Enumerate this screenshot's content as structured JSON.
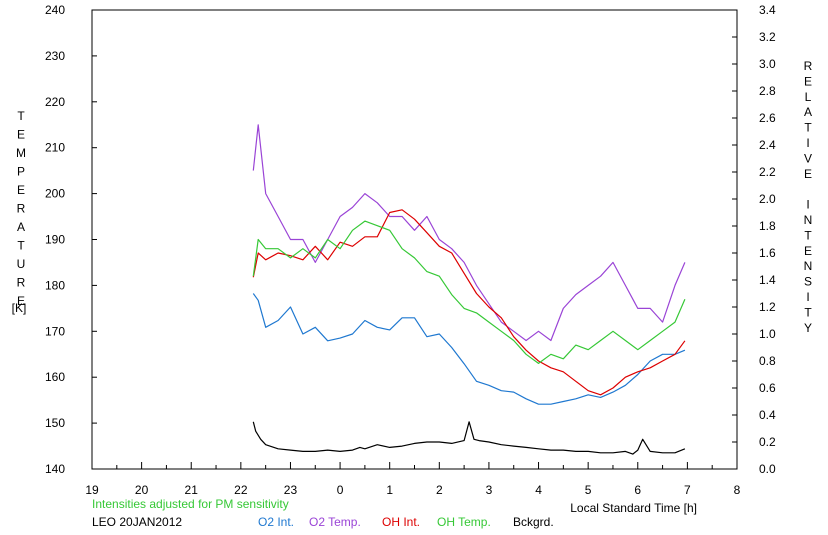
{
  "chart_data": {
    "type": "line",
    "left_axis": {
      "letters": [
        "T",
        "E",
        "M",
        "P",
        "E",
        "R",
        "A",
        "T",
        "U",
        "R",
        "E"
      ],
      "unit": "[K]",
      "ylim": [
        140,
        240
      ],
      "ticks": [
        "140",
        "150",
        "160",
        "170",
        "180",
        "190",
        "200",
        "210",
        "220",
        "230",
        "240"
      ]
    },
    "right_axis": {
      "letters": [
        "R",
        "E",
        "L",
        "A",
        "T",
        "I",
        "V",
        "E",
        "",
        "I",
        "N",
        "T",
        "E",
        "N",
        "S",
        "I",
        "T",
        "Y"
      ],
      "ylim": [
        0.0,
        3.4
      ],
      "ticks": [
        "0.0",
        "0.2",
        "0.4",
        "0.6",
        "0.8",
        "1.0",
        "1.2",
        "1.4",
        "1.6",
        "1.8",
        "2.0",
        "2.2",
        "2.4",
        "2.6",
        "2.8",
        "3.0",
        "3.2",
        "3.4"
      ]
    },
    "x_axis": {
      "label": "Local Standard Time [h]",
      "ticks": [
        "19",
        "20",
        "21",
        "22",
        "23",
        "0",
        "1",
        "2",
        "3",
        "4",
        "5",
        "6",
        "7",
        "8"
      ],
      "range_hours_since_19": [
        0,
        13
      ]
    },
    "note": "Intensities adjusted for PM sensitivity",
    "station_date": "LEO 20JAN2012",
    "grid": false,
    "series": [
      {
        "name": "O2 Int.",
        "color": "#1f78d0",
        "axis": "right",
        "x": [
          3.25,
          3.35,
          3.5,
          3.75,
          4.0,
          4.25,
          4.5,
          4.75,
          5.0,
          5.25,
          5.5,
          5.75,
          6.0,
          6.25,
          6.5,
          6.75,
          7.0,
          7.25,
          7.5,
          7.75,
          8.0,
          8.25,
          8.5,
          8.75,
          9.0,
          9.25,
          9.5,
          9.75,
          10.0,
          10.25,
          10.5,
          10.75,
          11.0,
          11.25,
          11.5,
          11.75,
          11.95
        ],
        "y": [
          1.3,
          1.25,
          1.05,
          1.1,
          1.2,
          1.0,
          1.05,
          0.95,
          0.97,
          1.0,
          1.1,
          1.05,
          1.03,
          1.12,
          1.12,
          0.98,
          1.0,
          0.9,
          0.78,
          0.65,
          0.62,
          0.58,
          0.57,
          0.52,
          0.48,
          0.48,
          0.5,
          0.52,
          0.55,
          0.53,
          0.57,
          0.62,
          0.7,
          0.8,
          0.85,
          0.85,
          0.88
        ]
      },
      {
        "name": "O2 Temp.",
        "color": "#9a44d6",
        "axis": "left",
        "x": [
          3.25,
          3.35,
          3.5,
          3.75,
          4.0,
          4.25,
          4.5,
          4.75,
          5.0,
          5.25,
          5.5,
          5.75,
          6.0,
          6.25,
          6.5,
          6.75,
          7.0,
          7.25,
          7.5,
          7.75,
          8.0,
          8.25,
          8.5,
          8.75,
          9.0,
          9.25,
          9.5,
          9.75,
          10.0,
          10.25,
          10.5,
          10.75,
          11.0,
          11.25,
          11.5,
          11.75,
          11.95
        ],
        "y": [
          205,
          215,
          200,
          195,
          190,
          190,
          185,
          190,
          195,
          197,
          200,
          198,
          195,
          195,
          192,
          195,
          190,
          188,
          185,
          180,
          176,
          172,
          170,
          168,
          170,
          168,
          175,
          178,
          180,
          182,
          185,
          180,
          175,
          175,
          172,
          180,
          185
        ]
      },
      {
        "name": "OH Int.",
        "color": "#dd0000",
        "axis": "right",
        "x": [
          3.25,
          3.35,
          3.5,
          3.75,
          4.0,
          4.25,
          4.5,
          4.75,
          5.0,
          5.25,
          5.5,
          5.75,
          6.0,
          6.25,
          6.5,
          6.75,
          7.0,
          7.25,
          7.5,
          7.75,
          8.0,
          8.25,
          8.5,
          8.75,
          9.0,
          9.25,
          9.5,
          9.75,
          10.0,
          10.25,
          10.5,
          10.75,
          11.0,
          11.25,
          11.5,
          11.75,
          11.95
        ],
        "y": [
          1.42,
          1.6,
          1.55,
          1.6,
          1.58,
          1.55,
          1.65,
          1.55,
          1.68,
          1.65,
          1.72,
          1.72,
          1.9,
          1.92,
          1.85,
          1.75,
          1.65,
          1.6,
          1.45,
          1.3,
          1.2,
          1.12,
          0.98,
          0.88,
          0.8,
          0.75,
          0.72,
          0.65,
          0.58,
          0.55,
          0.6,
          0.68,
          0.72,
          0.75,
          0.8,
          0.85,
          0.95
        ]
      },
      {
        "name": "OH Temp.",
        "color": "#36c836",
        "axis": "left",
        "x": [
          3.25,
          3.35,
          3.5,
          3.75,
          4.0,
          4.25,
          4.5,
          4.75,
          5.0,
          5.25,
          5.5,
          5.75,
          6.0,
          6.25,
          6.5,
          6.75,
          7.0,
          7.25,
          7.5,
          7.75,
          8.0,
          8.25,
          8.5,
          8.75,
          9.0,
          9.25,
          9.5,
          9.75,
          10.0,
          10.25,
          10.5,
          10.75,
          11.0,
          11.25,
          11.5,
          11.75,
          11.95
        ],
        "y": [
          182,
          190,
          188,
          188,
          186,
          188,
          186,
          190,
          188,
          192,
          194,
          193,
          192,
          188,
          186,
          183,
          182,
          178,
          175,
          174,
          172,
          170,
          168,
          165,
          163,
          165,
          164,
          167,
          166,
          168,
          170,
          168,
          166,
          168,
          170,
          172,
          177
        ]
      },
      {
        "name": "Bckgrd.",
        "color": "#000000",
        "axis": "right",
        "x": [
          3.25,
          3.3,
          3.4,
          3.5,
          3.75,
          4.0,
          4.25,
          4.5,
          4.75,
          5.0,
          5.25,
          5.4,
          5.5,
          5.75,
          6.0,
          6.25,
          6.5,
          6.75,
          7.0,
          7.25,
          7.5,
          7.6,
          7.7,
          7.8,
          8.0,
          8.25,
          8.5,
          8.75,
          9.0,
          9.25,
          9.5,
          9.75,
          10.0,
          10.25,
          10.5,
          10.75,
          10.9,
          11.0,
          11.1,
          11.25,
          11.5,
          11.75,
          11.95
        ],
        "y": [
          0.35,
          0.28,
          0.22,
          0.18,
          0.15,
          0.14,
          0.13,
          0.13,
          0.14,
          0.13,
          0.14,
          0.16,
          0.15,
          0.18,
          0.16,
          0.17,
          0.19,
          0.2,
          0.2,
          0.19,
          0.21,
          0.35,
          0.22,
          0.21,
          0.2,
          0.18,
          0.17,
          0.16,
          0.15,
          0.14,
          0.14,
          0.13,
          0.13,
          0.12,
          0.12,
          0.13,
          0.11,
          0.14,
          0.22,
          0.13,
          0.12,
          0.12,
          0.15
        ]
      }
    ]
  }
}
